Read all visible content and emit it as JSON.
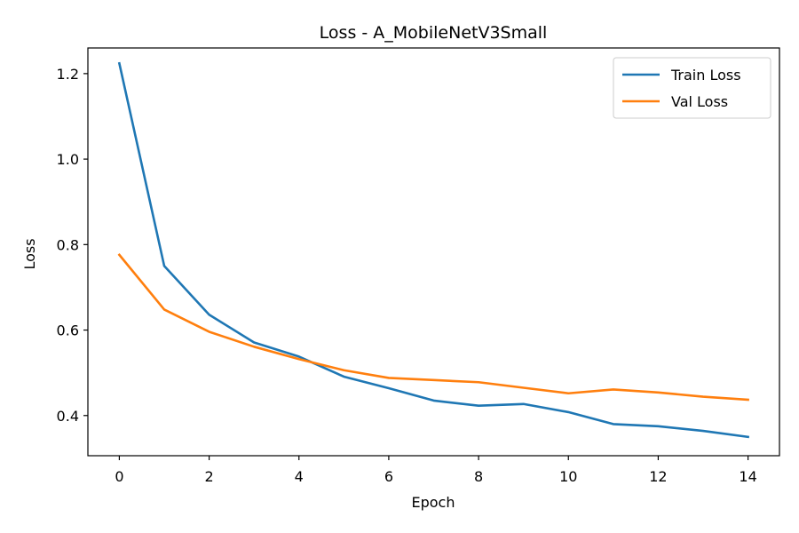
{
  "chart_data": {
    "type": "line",
    "title": "Loss - A_MobileNetV3Small",
    "xlabel": "Epoch",
    "ylabel": "Loss",
    "x": [
      0,
      1,
      2,
      3,
      4,
      5,
      6,
      7,
      8,
      9,
      10,
      11,
      12,
      13,
      14
    ],
    "xlim": [
      -0.7,
      14.7
    ],
    "ylim": [
      0.306,
      1.26
    ],
    "xticks": [
      0,
      2,
      4,
      6,
      8,
      10,
      12,
      14
    ],
    "yticks": [
      0.4,
      0.6,
      0.8,
      1.0,
      1.2
    ],
    "ytick_labels": [
      "0.4",
      "0.6",
      "0.8",
      "1.0",
      "1.2"
    ],
    "grid": false,
    "legend_position": "top-right",
    "series": [
      {
        "name": "Train Loss",
        "color": "#1f77b4",
        "values": [
          1.224,
          0.75,
          0.636,
          0.571,
          0.538,
          0.491,
          0.464,
          0.435,
          0.423,
          0.427,
          0.408,
          0.38,
          0.375,
          0.364,
          0.35
        ]
      },
      {
        "name": "Val Loss",
        "color": "#ff7f0e",
        "values": [
          0.776,
          0.648,
          0.596,
          0.561,
          0.532,
          0.506,
          0.488,
          0.483,
          0.478,
          0.465,
          0.452,
          0.461,
          0.454,
          0.444,
          0.437
        ]
      }
    ]
  }
}
